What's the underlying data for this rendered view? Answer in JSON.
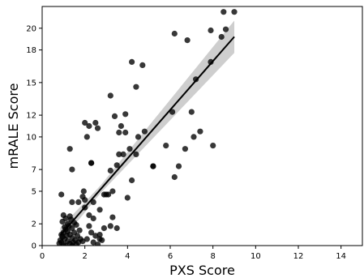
{
  "chart_data": {
    "type": "scatter",
    "title": "",
    "xlabel": "PXS Score",
    "ylabel": "mRALE Score",
    "xlim": [
      0,
      15
    ],
    "ylim": [
      0,
      22
    ],
    "xticks": [
      0,
      2,
      4,
      6,
      8,
      10,
      12,
      14
    ],
    "yticks": [
      0,
      2,
      5,
      7,
      10,
      12,
      15,
      18,
      20
    ],
    "grid": false,
    "legend": "none",
    "point_color": "#000000",
    "line_color": "#000000",
    "band_color": "#bdbdbd",
    "points": [
      [
        0.8,
        0.2
      ],
      [
        0.85,
        0.5
      ],
      [
        0.9,
        0.3
      ],
      [
        0.95,
        0.8
      ],
      [
        1.0,
        0.1
      ],
      [
        1.0,
        1.2
      ],
      [
        1.05,
        0.6
      ],
      [
        1.1,
        2.5
      ],
      [
        1.1,
        1.5
      ],
      [
        1.15,
        0.9
      ],
      [
        1.2,
        2.0
      ],
      [
        1.2,
        0.4
      ],
      [
        1.25,
        1.8
      ],
      [
        1.3,
        0.2
      ],
      [
        1.3,
        1.0
      ],
      [
        1.35,
        2.4
      ],
      [
        1.4,
        0.7
      ],
      [
        1.4,
        1.6
      ],
      [
        1.45,
        0.3
      ],
      [
        1.5,
        2.1
      ],
      [
        1.5,
        1.2
      ],
      [
        1.55,
        0.5
      ],
      [
        1.6,
        1.9
      ],
      [
        1.65,
        0.9
      ],
      [
        1.7,
        0.3
      ],
      [
        1.75,
        1.4
      ],
      [
        1.8,
        0.6
      ],
      [
        1.0,
        2.8
      ],
      [
        0.95,
        2.2
      ],
      [
        1.1,
        0.0
      ],
      [
        1.2,
        1.3
      ],
      [
        1.3,
        2.7
      ],
      [
        0.9,
        1.0
      ],
      [
        1.05,
        1.7
      ],
      [
        1.4,
        0.0
      ],
      [
        1.6,
        0.1
      ],
      [
        1.9,
        0.4
      ],
      [
        0.9,
        4.7
      ],
      [
        1.3,
        8.9
      ],
      [
        1.4,
        7.0
      ],
      [
        1.4,
        4.0
      ],
      [
        1.7,
        4.0
      ],
      [
        1.9,
        4.5
      ],
      [
        1.95,
        5.0
      ],
      [
        2.0,
        4.2
      ],
      [
        2.0,
        3.5
      ],
      [
        2.0,
        11.3
      ],
      [
        2.1,
        10.0
      ],
      [
        2.2,
        11.0
      ],
      [
        2.3,
        7.6
      ],
      [
        2.3,
        7.6
      ],
      [
        2.5,
        11.3
      ],
      [
        2.6,
        10.8
      ],
      [
        2.4,
        4.0
      ],
      [
        2.2,
        2.8
      ],
      [
        2.4,
        2.5
      ],
      [
        2.2,
        1.8
      ],
      [
        2.3,
        1.2
      ],
      [
        2.5,
        0.9
      ],
      [
        2.1,
        0.6
      ],
      [
        2.4,
        0.3
      ],
      [
        2.6,
        0.1
      ],
      [
        2.7,
        0.6
      ],
      [
        2.8,
        0.5
      ],
      [
        2.7,
        1.0
      ],
      [
        2.7,
        3.3
      ],
      [
        2.9,
        1.6
      ],
      [
        2.9,
        4.7
      ],
      [
        3.0,
        4.7
      ],
      [
        3.1,
        4.7
      ],
      [
        3.2,
        1.8
      ],
      [
        3.3,
        2.6
      ],
      [
        3.2,
        6.9
      ],
      [
        3.3,
        5.0
      ],
      [
        3.4,
        11.9
      ],
      [
        3.2,
        13.8
      ],
      [
        3.5,
        7.4
      ],
      [
        3.6,
        8.4
      ],
      [
        3.6,
        10.4
      ],
      [
        3.7,
        11.0
      ],
      [
        3.5,
        1.6
      ],
      [
        3.8,
        8.4
      ],
      [
        3.9,
        10.4
      ],
      [
        3.9,
        12.1
      ],
      [
        4.0,
        4.4
      ],
      [
        4.1,
        8.9
      ],
      [
        4.2,
        16.9
      ],
      [
        4.2,
        6.0
      ],
      [
        4.4,
        14.6
      ],
      [
        4.4,
        8.4
      ],
      [
        4.5,
        10.0
      ],
      [
        4.7,
        16.6
      ],
      [
        4.8,
        10.5
      ],
      [
        5.2,
        7.3
      ],
      [
        5.2,
        7.3
      ],
      [
        5.8,
        9.2
      ],
      [
        6.1,
        12.3
      ],
      [
        6.2,
        6.3
      ],
      [
        6.2,
        19.5
      ],
      [
        6.4,
        7.3
      ],
      [
        6.7,
        8.9
      ],
      [
        6.8,
        18.9
      ],
      [
        7.0,
        12.3
      ],
      [
        7.1,
        10.0
      ],
      [
        7.2,
        15.3
      ],
      [
        7.4,
        10.5
      ],
      [
        7.9,
        16.9
      ],
      [
        7.9,
        19.8
      ],
      [
        8.0,
        9.2
      ],
      [
        8.4,
        19.2
      ],
      [
        8.5,
        21.5
      ],
      [
        8.6,
        19.9
      ],
      [
        9.0,
        21.5
      ]
    ],
    "regression": {
      "intercept": -0.95,
      "slope": 2.24,
      "x_range": [
        0.85,
        9.0
      ]
    }
  }
}
